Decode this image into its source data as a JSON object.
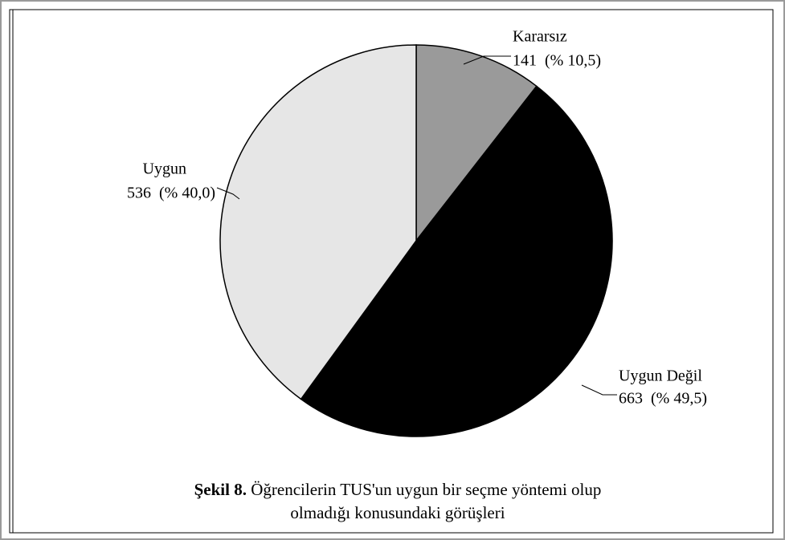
{
  "chart_data": {
    "type": "pie",
    "categories": [
      "Kararsız",
      "Uygun Değil",
      "Uygun"
    ],
    "values": [
      141,
      663,
      536
    ],
    "value_labels": [
      "141  (% 10,5)",
      "663  (% 49,5)",
      "536  (% 40,0)"
    ],
    "colors": [
      "#9a9a9a",
      "#000000",
      "#e6e6e6"
    ],
    "start_angle": 0,
    "direction": "clockwise",
    "caption_label": "Şekil 8.",
    "caption": "Öğrencilerin TUS'un uygun bir seçme yöntemi olup olmadığı konusundaki görüşleri"
  }
}
